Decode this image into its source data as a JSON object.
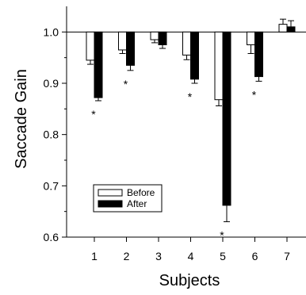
{
  "chart_data": {
    "type": "bar",
    "title": "",
    "xlabel": "Subjects",
    "ylabel": "Saccade Gain",
    "ylim": [
      0.6,
      1.05
    ],
    "yticks": [
      0.6,
      0.7,
      0.8,
      0.9,
      1.0
    ],
    "ytick_labels": [
      "0.6",
      "0.7",
      "0.8",
      "0.9",
      "1.0"
    ],
    "baseline": 1.0,
    "categories": [
      "1",
      "2",
      "3",
      "4",
      "5",
      "6",
      "7"
    ],
    "series": [
      {
        "name": "Before",
        "color": "#ffffff",
        "values": [
          0.945,
          0.965,
          0.985,
          0.955,
          0.868,
          0.975,
          1.015
        ],
        "errors": [
          0.008,
          0.007,
          0.006,
          0.009,
          0.012,
          0.017,
          0.01
        ]
      },
      {
        "name": "After",
        "color": "#000000",
        "values": [
          0.872,
          0.935,
          0.975,
          0.908,
          0.662,
          0.913,
          1.01
        ],
        "errors": [
          0.006,
          0.01,
          0.007,
          0.008,
          0.032,
          0.009,
          0.012
        ]
      }
    ],
    "significance": [
      "*",
      "*",
      "",
      "*",
      "*",
      "*",
      ""
    ],
    "legend": {
      "placement": "lower-left",
      "entries": [
        "Before",
        "After"
      ]
    },
    "grid": false
  }
}
